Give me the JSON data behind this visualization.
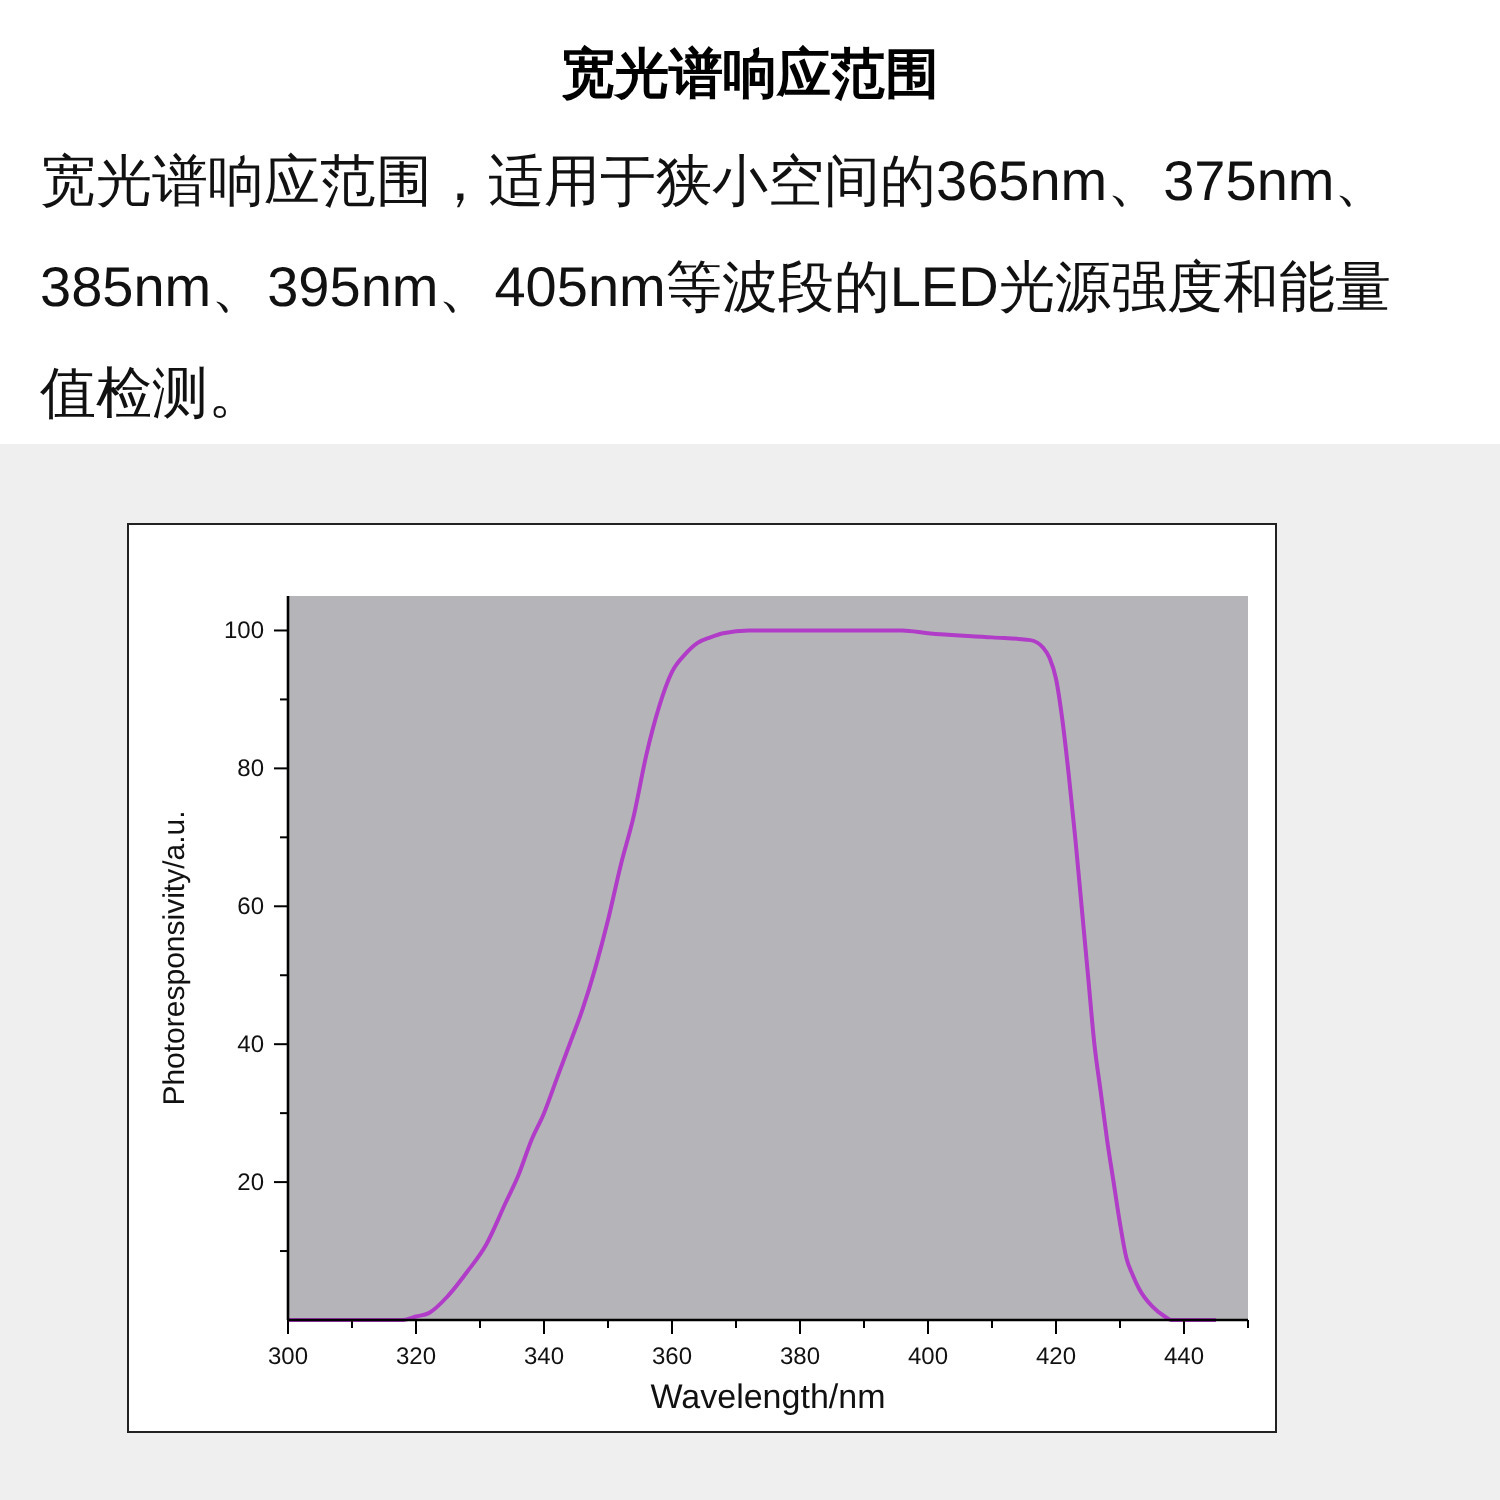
{
  "chart_data": {
    "type": "line",
    "title": "宽光谱响应范围",
    "subtitle": "宽光谱响应范围，适用于狭小空间的365nm、375nm、385nm、395nm、405nm等波段的LED光源强度和能量值检测。",
    "xlabel": "Wavelength/nm",
    "ylabel": "Photoresponsivity/a.u.",
    "xlim": [
      300,
      450
    ],
    "xticks": [
      300,
      {
        "value": 310,
        "label": null
      },
      320,
      {
        "value": 330,
        "label": null
      },
      340,
      {
        "value": 350,
        "label": null
      },
      360,
      {
        "value": 370,
        "label": null
      },
      380,
      {
        "value": 390,
        "label": null
      },
      400,
      {
        "value": 410,
        "label": null
      },
      420,
      {
        "value": 430,
        "label": null
      },
      440,
      {
        "value": 450,
        "label": null
      }
    ],
    "ylim": [
      0,
      105
    ],
    "yticks": [
      {
        "value": 10,
        "label": null
      },
      20,
      {
        "value": 30,
        "label": null
      },
      40,
      {
        "value": 50,
        "label": null
      },
      60,
      {
        "value": 70,
        "label": null
      },
      80,
      {
        "value": 90,
        "label": null
      },
      100
    ],
    "series": [
      {
        "color": "#b03cc8",
        "x": [
          300,
          318,
          320,
          322,
          325,
          328,
          331,
          334,
          336,
          338,
          340,
          342,
          344,
          346,
          348,
          350,
          352,
          354,
          356,
          358,
          360,
          362,
          364,
          366,
          368,
          372,
          380,
          396,
          400,
          410,
          416,
          418,
          419,
          420,
          421,
          422,
          423,
          424,
          425,
          426,
          427,
          428,
          429,
          430,
          431,
          432,
          433,
          435,
          437,
          438,
          445
        ],
        "values": [
          0,
          0,
          0.5,
          1,
          3.5,
          7,
          11,
          17,
          21,
          26,
          30,
          35,
          40,
          45,
          51,
          58,
          66,
          73,
          82,
          89,
          94,
          96.5,
          98.2,
          99,
          99.6,
          100,
          100,
          100,
          99.6,
          99,
          98.6,
          97.5,
          96,
          93,
          87,
          79,
          70,
          60,
          50,
          40,
          33,
          26,
          20,
          14,
          9,
          6.5,
          4.5,
          2,
          0.5,
          0,
          0
        ]
      }
    ]
  }
}
